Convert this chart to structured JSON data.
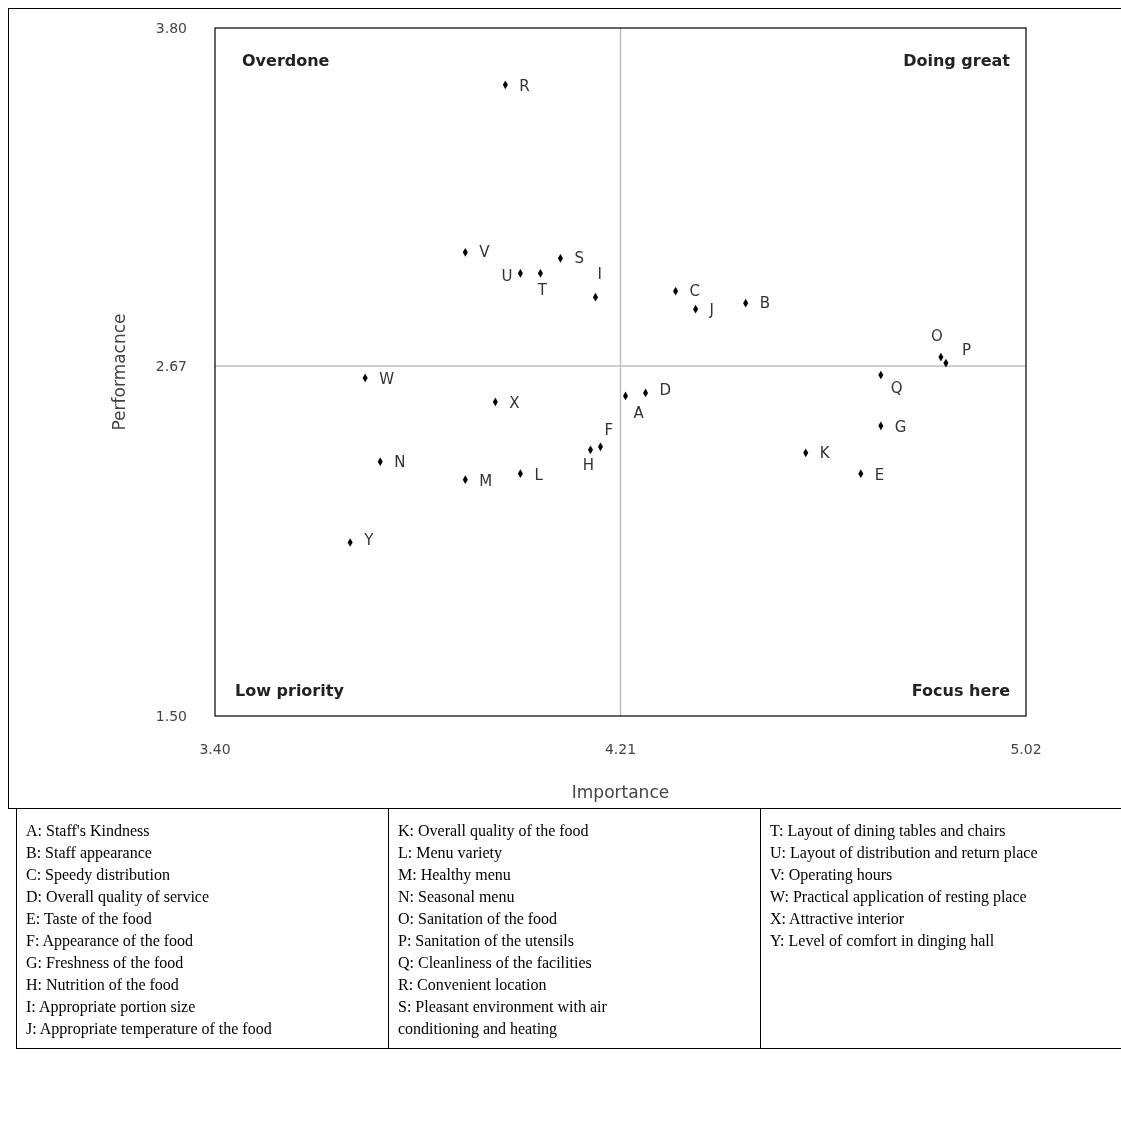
{
  "chart_data": {
    "type": "scatter",
    "xlabel": "Importance",
    "ylabel": "Performacnce",
    "xlim": [
      3.4,
      5.02
    ],
    "ylim": [
      1.5,
      3.8
    ],
    "xticks": [
      {
        "value": 3.4,
        "label": "3.40"
      },
      {
        "value": 4.21,
        "label": "4.21"
      },
      {
        "value": 5.02,
        "label": "5.02"
      }
    ],
    "yticks": [
      {
        "value": 1.5,
        "label": "1.50"
      },
      {
        "value": 2.67,
        "label": "2.67"
      },
      {
        "value": 3.8,
        "label": "3.80"
      }
    ],
    "grid": false,
    "marker": "diamond",
    "ref_lines": [
      {
        "axis": "x",
        "value": 4.21,
        "color": "#bfbfbf"
      },
      {
        "axis": "y",
        "value": 2.67,
        "color": "#bfbfbf"
      }
    ],
    "series": [
      {
        "color": "#000000",
        "x": [
          4.22,
          4.46,
          4.32,
          4.26,
          4.69,
          4.17,
          4.73,
          4.15,
          4.16,
          4.36,
          4.58,
          4.01,
          3.9,
          3.73,
          4.85,
          4.86,
          4.73,
          3.98,
          4.09,
          4.05,
          4.01,
          3.9,
          3.7,
          3.96,
          3.67
        ],
        "values": [
          2.57,
          2.88,
          2.92,
          2.58,
          2.31,
          2.4,
          2.47,
          2.39,
          2.9,
          2.86,
          2.38,
          2.31,
          2.29,
          2.35,
          2.7,
          2.68,
          2.64,
          3.61,
          3.03,
          2.98,
          2.98,
          3.05,
          2.63,
          2.55,
          2.08
        ]
      }
    ],
    "annotations": [
      "Overdone",
      "Doing great",
      "Low priority",
      "Focus here",
      {
        "text": "A",
        "x": 4.22,
        "y": 2.57
      },
      {
        "text": "B",
        "x": 4.46,
        "y": 2.88
      },
      {
        "text": "C",
        "x": 4.32,
        "y": 2.92
      },
      {
        "text": "D",
        "x": 4.26,
        "y": 2.58
      },
      {
        "text": "E",
        "x": 4.69,
        "y": 2.31
      },
      {
        "text": "F",
        "x": 4.17,
        "y": 2.4
      },
      {
        "text": "G",
        "x": 4.73,
        "y": 2.47
      },
      {
        "text": "H",
        "x": 4.15,
        "y": 2.39
      },
      {
        "text": "I",
        "x": 4.16,
        "y": 2.9
      },
      {
        "text": "J",
        "x": 4.36,
        "y": 2.86
      },
      {
        "text": "K",
        "x": 4.58,
        "y": 2.38
      },
      {
        "text": "L",
        "x": 4.01,
        "y": 2.31
      },
      {
        "text": "M",
        "x": 3.9,
        "y": 2.29
      },
      {
        "text": "N",
        "x": 3.73,
        "y": 2.35
      },
      {
        "text": "O",
        "x": 4.85,
        "y": 2.7
      },
      {
        "text": "P",
        "x": 4.86,
        "y": 2.68
      },
      {
        "text": "Q",
        "x": 4.73,
        "y": 2.64
      },
      {
        "text": "R",
        "x": 3.98,
        "y": 3.61
      },
      {
        "text": "S",
        "x": 4.09,
        "y": 3.03
      },
      {
        "text": "T",
        "x": 4.05,
        "y": 2.98
      },
      {
        "text": "U",
        "x": 4.01,
        "y": 2.98
      },
      {
        "text": "V",
        "x": 3.9,
        "y": 3.05
      },
      {
        "text": "W",
        "x": 3.7,
        "y": 2.63
      },
      {
        "text": "X",
        "x": 3.96,
        "y": 2.55
      },
      {
        "text": "Y",
        "x": 3.67,
        "y": 2.08
      },
      "A: Staff's Kindness",
      "B: Staff appearance",
      "C: Speedy distribution",
      "D: Overall quality of service",
      "E: Taste of the food",
      "F: Appearance of the food",
      "G: Freshness of the food",
      "H: Nutrition of the food",
      "I: Appropriate portion size",
      "J: Appropriate temperature of the food",
      "K: Overall quality of the food",
      "L: Menu variety",
      "M: Healthy menu",
      "N: Seasonal menu",
      "O: Sanitation of the food",
      "P: Sanitation of the utensils",
      "Q: Cleanliness of the facilities",
      "R: Convenient location",
      "S: Pleasant environment with air conditioning and heating",
      "T: Layout of dining tables and chairs",
      "U: Layout of distribution and return place",
      "V: Operating hours",
      "W: Practical application of resting place",
      "X: Attractive interior",
      "Y: Level of comfort in dinging hall"
    ]
  }
}
